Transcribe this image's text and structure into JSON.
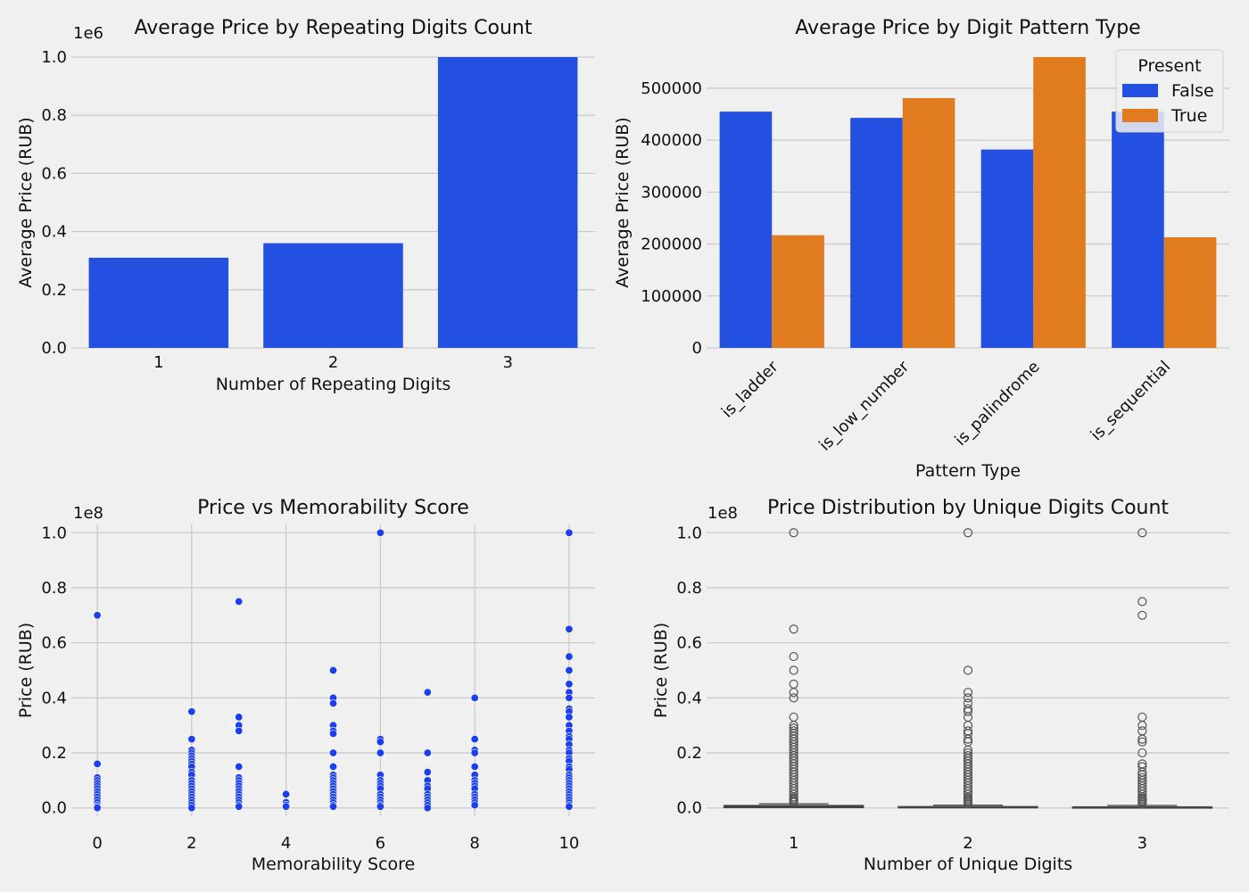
{
  "chart_data": [
    {
      "type": "bar",
      "title": "Average Price by Repeating Digits Count",
      "xlabel": "Number of Repeating Digits",
      "ylabel": "Average Price (RUB)",
      "y_multiplier_label": "1e6",
      "categories": [
        "1",
        "2",
        "3"
      ],
      "values": [
        310000,
        360000,
        1000000
      ],
      "ylim": [
        0,
        1000000
      ],
      "yticks": [
        0,
        200000,
        400000,
        600000,
        800000,
        1000000
      ],
      "ytick_labels": [
        "0.0",
        "0.2",
        "0.4",
        "0.6",
        "0.8",
        "1.0"
      ],
      "color": "#2350e0",
      "grid": "y"
    },
    {
      "type": "bar",
      "title": "Average Price by Digit Pattern Type",
      "xlabel": "Pattern Type",
      "ylabel": "Average Price (RUB)",
      "categories": [
        "is_ladder",
        "is_low_number",
        "is_palindrome",
        "is_sequential"
      ],
      "series": [
        {
          "name": "False",
          "values": [
            455000,
            443000,
            382000,
            455000
          ],
          "color": "#2350e0"
        },
        {
          "name": "True",
          "values": [
            217000,
            481000,
            560000,
            213000
          ],
          "color": "#e07b1f"
        }
      ],
      "ylim": [
        0,
        560000
      ],
      "yticks": [
        0,
        100000,
        200000,
        300000,
        400000,
        500000
      ],
      "ytick_labels": [
        "0",
        "100000",
        "200000",
        "300000",
        "400000",
        "500000"
      ],
      "legend_title": "Present",
      "legend_position": "top-right",
      "grid": "y"
    },
    {
      "type": "scatter",
      "title": "Price vs Memorability Score",
      "xlabel": "Memorability Score",
      "ylabel": "Price (RUB)",
      "y_multiplier_label": "1e8",
      "xlim": [
        -0.55,
        10.55
      ],
      "xticks": [
        0,
        2,
        4,
        6,
        8,
        10
      ],
      "ylim": [
        -3000000,
        103000000
      ],
      "yticks": [
        0,
        20000000,
        40000000,
        60000000,
        80000000,
        100000000
      ],
      "ytick_labels": [
        "0.0",
        "0.2",
        "0.4",
        "0.6",
        "0.8",
        "1.0"
      ],
      "color": "#1a3ff0",
      "grid": "both",
      "points": [
        {
          "x": 0,
          "y": [
            70000000,
            16000000,
            11000000,
            10000000,
            9000000,
            8000000,
            7000000,
            6000000,
            5000000,
            4000000,
            3000000,
            2000000,
            1000000,
            500000,
            0
          ]
        },
        {
          "x": 2,
          "y": [
            35000000,
            25000000,
            21000000,
            20000000,
            19000000,
            18000000,
            17000000,
            16000000,
            15000000,
            13000000,
            12000000,
            10000000,
            9000000,
            8000000,
            7000000,
            6000000,
            5000000,
            4000000,
            3000000,
            2000000,
            1000000,
            0
          ]
        },
        {
          "x": 3,
          "y": [
            75000000,
            33000000,
            30000000,
            28000000,
            15000000,
            11000000,
            10000000,
            9000000,
            8000000,
            7000000,
            6000000,
            5000000,
            4000000,
            3000000,
            2000000,
            1000000,
            500000
          ]
        },
        {
          "x": 4,
          "y": [
            5000000,
            2000000,
            1000000,
            500000
          ]
        },
        {
          "x": 5,
          "y": [
            50000000,
            40000000,
            38000000,
            30000000,
            28000000,
            27000000,
            20000000,
            15000000,
            12000000,
            11000000,
            10000000,
            9000000,
            8000000,
            7000000,
            6000000,
            5000000,
            4000000,
            3000000,
            2000000,
            1000000,
            500000
          ]
        },
        {
          "x": 6,
          "y": [
            100000000,
            25000000,
            24000000,
            20000000,
            12000000,
            10000000,
            9000000,
            8000000,
            7000000,
            5000000,
            4000000,
            3000000,
            2000000,
            1000000,
            500000
          ]
        },
        {
          "x": 7,
          "y": [
            42000000,
            20000000,
            13000000,
            10000000,
            8000000,
            7000000,
            5000000,
            4000000,
            3000000,
            2000000,
            1000000,
            0
          ]
        },
        {
          "x": 8,
          "y": [
            40000000,
            25000000,
            21000000,
            20000000,
            15000000,
            12000000,
            10000000,
            9000000,
            8000000,
            7000000,
            5000000,
            4000000,
            3000000,
            2000000,
            1000000
          ]
        },
        {
          "x": 10,
          "y": [
            100000000,
            65000000,
            55000000,
            50000000,
            45000000,
            42000000,
            40000000,
            36000000,
            35000000,
            33000000,
            30000000,
            28000000,
            26000000,
            25000000,
            23000000,
            21000000,
            20000000,
            18000000,
            17000000,
            15000000,
            14000000,
            12000000,
            11000000,
            10000000,
            9000000,
            8000000,
            7000000,
            6000000,
            5000000,
            4000000,
            3000000,
            2000000,
            1000000,
            500000
          ]
        }
      ]
    },
    {
      "type": "box",
      "title": "Price Distribution by Unique Digits Count",
      "xlabel": "Number of Unique Digits",
      "ylabel": "Price (RUB)",
      "y_multiplier_label": "1e8",
      "categories": [
        "1",
        "2",
        "3"
      ],
      "ylim": [
        -3000000,
        103000000
      ],
      "yticks": [
        0,
        20000000,
        40000000,
        60000000,
        80000000,
        100000000
      ],
      "ytick_labels": [
        "0.0",
        "0.2",
        "0.4",
        "0.6",
        "0.8",
        "1.0"
      ],
      "grid": "y",
      "boxes": [
        {
          "q1": 100000,
          "median": 300000,
          "q3": 900000,
          "whisker_high": 1500000,
          "outliers": [
            100000000,
            65000000,
            55000000,
            50000000,
            45000000,
            42000000,
            40000000,
            33000000,
            30000000,
            29000000,
            28000000,
            27000000,
            26000000,
            25000000,
            24000000,
            23000000,
            22000000,
            21000000,
            20000000,
            19000000,
            18000000,
            17000000,
            16000000,
            15000000,
            14000000,
            13000000,
            12000000,
            11000000,
            10000000,
            9000000,
            8000000,
            7000000,
            6000000,
            5000000,
            4000000,
            3500000,
            3000000,
            2500000,
            2000000
          ]
        },
        {
          "q1": 50000,
          "median": 150000,
          "q3": 500000,
          "whisker_high": 1000000,
          "outliers": [
            100000000,
            50000000,
            42000000,
            40000000,
            38000000,
            36000000,
            35000000,
            33000000,
            30000000,
            28000000,
            27000000,
            25000000,
            24000000,
            21000000,
            20000000,
            19000000,
            18000000,
            17000000,
            16000000,
            15000000,
            14000000,
            13000000,
            12000000,
            11000000,
            10000000,
            9000000,
            8000000,
            7000000,
            6000000,
            5000000,
            4000000,
            3500000,
            3000000,
            2500000,
            2000000,
            1500000
          ]
        },
        {
          "q1": 40000,
          "median": 120000,
          "q3": 400000,
          "whisker_high": 900000,
          "outliers": [
            100000000,
            75000000,
            70000000,
            33000000,
            30000000,
            28000000,
            25000000,
            24000000,
            20000000,
            16000000,
            15000000,
            13000000,
            12000000,
            11000000,
            10000000,
            9000000,
            8000000,
            7000000,
            6000000,
            5000000,
            4000000,
            3500000,
            3000000,
            2500000,
            2000000,
            1500000
          ]
        }
      ]
    }
  ]
}
